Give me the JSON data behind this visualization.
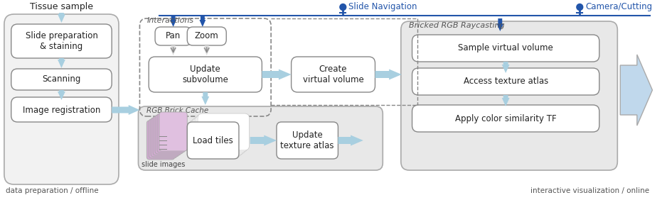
{
  "figsize": [
    9.38,
    2.82
  ],
  "dpi": 100,
  "bg": "#ffffff",
  "blue_arr": "#a8cfe0",
  "nav_blue": "#2255aa",
  "box_edge": "#888888",
  "outer_edge": "#aaaaaa",
  "outer_fill": "#e8e8e8",
  "box_fill": "#ffffff",
  "text_dark": "#222222",
  "text_gray": "#555555",
  "pink_stack": "#d4aed4",
  "label_left": "data preparation / offline",
  "label_right": "interactive visualization / online",
  "tissue": "Tissue sample",
  "box1": "Slide preparation\n& staining",
  "box2": "Scanning",
  "box3": "Image registration",
  "pan": "Pan",
  "zoom_lbl": "Zoom",
  "update_sub": "Update\nsubvolume",
  "create_vv": "Create\nvirtual volume",
  "rgb_cache": "RGB Brick Cache",
  "slide_img": "slide images",
  "load_tiles": "Load tiles",
  "update_ta": "Update\ntexture atlas",
  "bricked": "Bricked RGB Raycasting",
  "sample_vv": "Sample virtual volume",
  "access_ta": "Access texture atlas",
  "apply_tf": "Apply color similarity TF",
  "interact": "Interactions",
  "slide_nav": "Slide Navigation",
  "cam_cut": "Camera/Cutting"
}
